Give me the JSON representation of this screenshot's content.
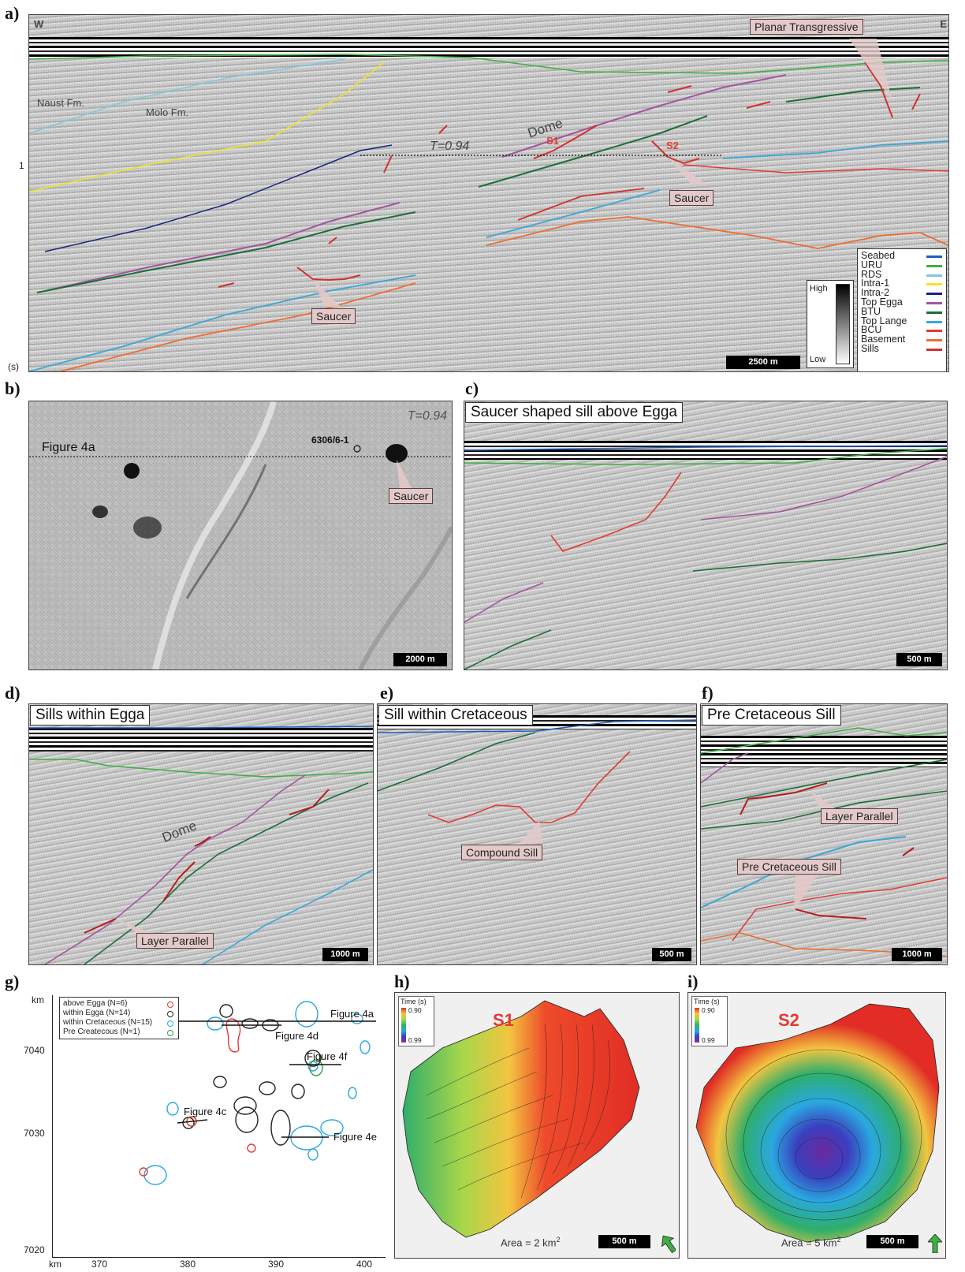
{
  "panels": {
    "a": {
      "letter": "a)",
      "west": "W",
      "east": "E",
      "y_unit": "(s)",
      "y_tick_1": "1",
      "labels": {
        "naust": "Naust Fm.",
        "molo": "Molo Fm.",
        "dome": "Dome",
        "t_line": "T=0.94",
        "s1": "S1",
        "s2": "S2"
      },
      "callouts": {
        "planar": "Planar Transgressive",
        "saucer_right": "Saucer",
        "saucer_left": "Saucer"
      },
      "amplitude": {
        "high": "High",
        "low": "Low"
      },
      "scale": "2500 m",
      "legend": [
        {
          "label": "Seabed",
          "color": "#1f5fbf"
        },
        {
          "label": "URU",
          "color": "#3cb043"
        },
        {
          "label": "RDS",
          "color": "#7ec8e3"
        },
        {
          "label": "Intra-1",
          "color": "#f2e51d"
        },
        {
          "label": "Intra-2",
          "color": "#1a237e"
        },
        {
          "label": "Top Egga",
          "color": "#a4549e"
        },
        {
          "label": "BTU",
          "color": "#1b6e3a"
        },
        {
          "label": "Top Lange",
          "color": "#3aa7d8"
        },
        {
          "label": "BCU",
          "color": "#e53935"
        },
        {
          "label": "Basement",
          "color": "#ef6c2f"
        },
        {
          "label": "Sills",
          "color": "#d32f2f"
        }
      ]
    },
    "b": {
      "letter": "b)",
      "t_label": "T=0.94",
      "fig_label": "Figure 4a",
      "well": "6306/6-1",
      "callout": "Saucer",
      "scale": "2000 m"
    },
    "c": {
      "letter": "c)",
      "title": "Saucer shaped sill above Egga",
      "scale": "500 m"
    },
    "d": {
      "letter": "d)",
      "title": "Sills within Egga",
      "dome": "Dome",
      "callout": "Layer Parallel",
      "scale": "1000 m"
    },
    "e": {
      "letter": "e)",
      "title": "Sill within Cretaceous",
      "callout": "Compound Sill",
      "scale": "500 m"
    },
    "f": {
      "letter": "f)",
      "title": "Pre Cretaceous Sill",
      "callout_layer": "Layer Parallel",
      "callout_pre": "Pre Cretaceous Sill",
      "scale": "1000 m"
    },
    "g": {
      "letter": "g)",
      "y_unit": "km",
      "x_unit": "km",
      "y_ticks": [
        "7040",
        "7030",
        "7020"
      ],
      "x_ticks": [
        "370",
        "380",
        "390",
        "400"
      ],
      "legend": [
        {
          "label": "above Egga (N=6)",
          "color": "#e53935"
        },
        {
          "label": "within Egga (N=14)",
          "color": "#222222"
        },
        {
          "label": "within Cretaceous (N=15)",
          "color": "#29a8e0"
        },
        {
          "label": "Pre Createcous (N=1)",
          "color": "#2e9e3e"
        }
      ],
      "figure_labels": {
        "f4a": "Figure 4a",
        "f4d": "Figure 4d",
        "f4f": "Figure 4f",
        "f4c": "Figure 4c",
        "f4e": "Figure 4e"
      }
    },
    "h": {
      "letter": "h)",
      "name": "S1",
      "colorbar_title": "Time (s)",
      "cb_top": "0.90",
      "cb_bottom": "0.99",
      "area": "Area = 2 km",
      "area_sup": "2",
      "scale": "500 m"
    },
    "i": {
      "letter": "i)",
      "name": "S2",
      "colorbar_title": "Time (s)",
      "cb_top": "0.90",
      "cb_bottom": "0.99",
      "area": "Area = 5 km",
      "area_sup": "2",
      "scale": "500 m"
    }
  }
}
